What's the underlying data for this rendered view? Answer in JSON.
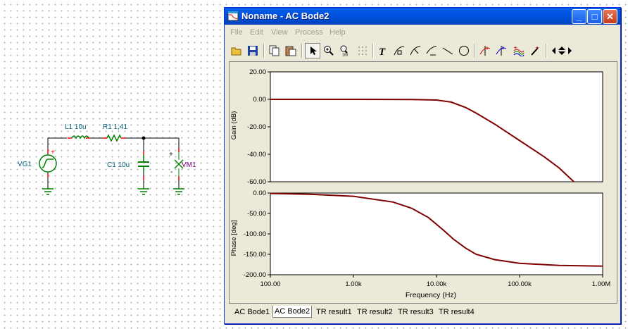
{
  "schematic": {
    "vg_label": "VG1",
    "l1_label": "L1 10u",
    "r1_label": "R1 1,41",
    "c1_label": "C1 10u",
    "vm_label": "VM1",
    "plus": "+",
    "minus": "-"
  },
  "window": {
    "title": "Noname - AC Bode2",
    "min_label": "_",
    "max_label": "□",
    "close_label": "✕"
  },
  "menu": {
    "items": [
      "File",
      "Edit",
      "View",
      "Process",
      "Help"
    ]
  },
  "toolbar": {
    "icons": [
      "open-icon",
      "save-icon",
      "copy-icon",
      "paste-icon",
      "pointer-icon",
      "zoom-in-icon",
      "zoom-100-icon",
      "grid-icon",
      "text-icon",
      "curve-label-a-icon",
      "curve-label-b-icon",
      "curve-label-c-icon",
      "line-icon",
      "ellipse-icon",
      "cursor-a-icon",
      "cursor-b-icon",
      "add-curve-icon",
      "marker-icon",
      "scroll-arrows-icon"
    ]
  },
  "tabs": [
    "AC Bode1",
    "AC Bode2",
    "TR result1",
    "TR result2",
    "TR result3",
    "TR result4"
  ],
  "active_tab": 1,
  "colors": {
    "trace": "#800000",
    "grid": "#a0a0a0"
  },
  "chart_data": [
    {
      "type": "line",
      "ylabel": "Gain (dB)",
      "xscale": "log",
      "xlim": [
        100,
        1000000
      ],
      "ylim": [
        -60,
        20
      ],
      "yticks": [
        "20.00",
        "0.00",
        "-20.00",
        "-40.00",
        "-60.00"
      ],
      "grid": true,
      "x": [
        100,
        1000,
        5000,
        10000,
        15000,
        22500,
        30000,
        50000,
        100000,
        200000,
        300000,
        450000
      ],
      "y": [
        0,
        0,
        -0.1,
        -0.5,
        -2,
        -6,
        -10,
        -18,
        -30,
        -42,
        -50,
        -60
      ]
    },
    {
      "type": "line",
      "ylabel": "Phase [deg]",
      "xlabel": "Frequency (Hz)",
      "xscale": "log",
      "xlim": [
        100,
        1000000
      ],
      "ylim": [
        -200,
        0
      ],
      "yticks": [
        "0.00",
        "-50.00",
        "-100.00",
        "-150.00",
        "-200.00"
      ],
      "xticks": [
        "100.00",
        "1.00k",
        "10.00k",
        "100.00k",
        "1.00M"
      ],
      "grid": true,
      "x": [
        100,
        300,
        1000,
        3000,
        5000,
        8000,
        12000,
        16000,
        22500,
        30000,
        50000,
        100000,
        300000,
        1000000
      ],
      "y": [
        -1,
        -3,
        -8,
        -22,
        -37,
        -60,
        -90,
        -113,
        -135,
        -150,
        -163,
        -172,
        -177,
        -179
      ]
    }
  ]
}
